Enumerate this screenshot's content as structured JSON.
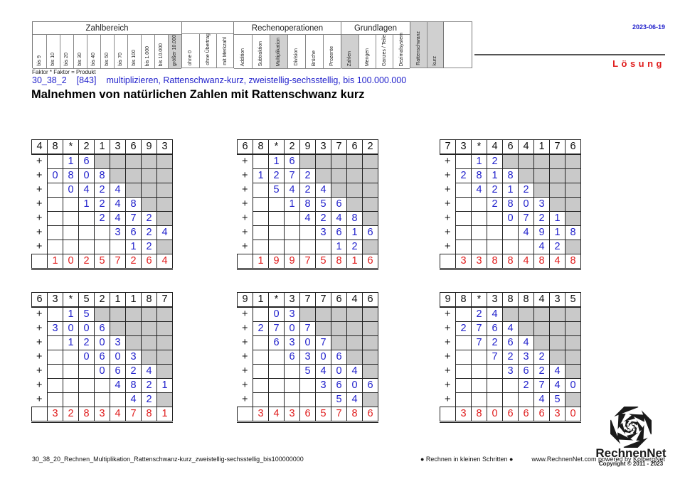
{
  "header": {
    "date": "2023-06-19",
    "solution_label": "Lösung",
    "note": "Faktor * Faktor = Produkt",
    "classification": {
      "sections": [
        {
          "title": "Zahlbereich",
          "columns": [
            {
              "label": "bis 9"
            },
            {
              "label": "bis 10"
            },
            {
              "label": "bis 20"
            },
            {
              "label": "bis 30"
            },
            {
              "label": "bis 40"
            },
            {
              "label": "bis 50"
            },
            {
              "label": "bis 70"
            },
            {
              "label": "bis 100"
            },
            {
              "label": "bis 1.000"
            },
            {
              "label": "bis 10.000"
            },
            {
              "label": "größer 10.000",
              "highlight": true
            }
          ]
        },
        {
          "title": "",
          "columns": [
            {
              "label": "ohne 0"
            },
            {
              "label": "ohne Übertrag"
            },
            {
              "label": "mit Merkzahl"
            }
          ]
        },
        {
          "title": "Rechenoperationen",
          "columns": [
            {
              "label": "Addition"
            },
            {
              "label": "Subtraktion"
            },
            {
              "label": "Multiplikation",
              "highlight": true
            },
            {
              "label": "Division"
            },
            {
              "label": "Brüche"
            },
            {
              "label": "Prozente"
            }
          ]
        },
        {
          "title": "Grundlagen",
          "columns": [
            {
              "label": "Zahlen",
              "highlight": true
            },
            {
              "label": "Mengen"
            },
            {
              "label": "Ganzes / Teile"
            },
            {
              "label": "Dezimalsystem"
            }
          ]
        },
        {
          "title": "",
          "columns": [
            {
              "label": "Rattenschwanz",
              "highlight": true
            },
            {
              "label": "kurz",
              "highlight": true
            }
          ]
        }
      ]
    }
  },
  "worksheet": {
    "code": "30_38_2",
    "reference": "[843]",
    "description": "multiplizieren, Rattenschwanz-kurz, zweistellig-sechsstellig, bis 100.000.000",
    "title": "Malnehmen von natürlichen Zahlen mit Rattenschwanz kurz",
    "plus_sign": "+"
  },
  "grids": [
    {
      "header": [
        "4",
        "8",
        "*",
        "2",
        "1",
        "3",
        "6",
        "9",
        "3"
      ],
      "rows": [
        [
          "",
          "1",
          "6",
          null,
          null,
          null,
          null,
          null
        ],
        [
          "0",
          "8",
          "0",
          "8",
          null,
          null,
          null,
          null
        ],
        [
          "",
          "0",
          "4",
          "2",
          "4",
          null,
          null,
          null
        ],
        [
          "",
          "",
          "1",
          "2",
          "4",
          "8",
          null,
          null
        ],
        [
          "",
          "",
          "",
          "2",
          "4",
          "7",
          "2",
          null
        ],
        [
          "",
          "",
          "",
          "",
          "3",
          "6",
          "2",
          "4"
        ],
        [
          "",
          "",
          "",
          "",
          "",
          "1",
          "2",
          null
        ]
      ],
      "result": [
        "1",
        "0",
        "2",
        "5",
        "7",
        "2",
        "6",
        "4"
      ]
    },
    {
      "header": [
        "6",
        "8",
        "*",
        "2",
        "9",
        "3",
        "7",
        "6",
        "2"
      ],
      "rows": [
        [
          "",
          "1",
          "6",
          null,
          null,
          null,
          null,
          null
        ],
        [
          "1",
          "2",
          "7",
          "2",
          null,
          null,
          null,
          null
        ],
        [
          "",
          "5",
          "4",
          "2",
          "4",
          null,
          null,
          null
        ],
        [
          "",
          "",
          "1",
          "8",
          "5",
          "6",
          null,
          null
        ],
        [
          "",
          "",
          "",
          "4",
          "2",
          "4",
          "8",
          null
        ],
        [
          "",
          "",
          "",
          "",
          "3",
          "6",
          "1",
          "6"
        ],
        [
          "",
          "",
          "",
          "",
          "",
          "1",
          "2",
          null
        ]
      ],
      "result": [
        "1",
        "9",
        "9",
        "7",
        "5",
        "8",
        "1",
        "6"
      ]
    },
    {
      "header": [
        "7",
        "3",
        "*",
        "4",
        "6",
        "4",
        "1",
        "7",
        "6"
      ],
      "rows": [
        [
          "",
          "1",
          "2",
          null,
          null,
          null,
          null,
          null
        ],
        [
          "2",
          "8",
          "1",
          "8",
          null,
          null,
          null,
          null
        ],
        [
          "",
          "4",
          "2",
          "1",
          "2",
          null,
          null,
          null
        ],
        [
          "",
          "",
          "2",
          "8",
          "0",
          "3",
          null,
          null
        ],
        [
          "",
          "",
          "",
          "0",
          "7",
          "2",
          "1",
          null
        ],
        [
          "",
          "",
          "",
          "",
          "4",
          "9",
          "1",
          "8"
        ],
        [
          "",
          "",
          "",
          "",
          "",
          "4",
          "2",
          null
        ]
      ],
      "result": [
        "3",
        "3",
        "8",
        "8",
        "4",
        "8",
        "4",
        "8"
      ]
    },
    {
      "header": [
        "6",
        "3",
        "*",
        "5",
        "2",
        "1",
        "1",
        "8",
        "7"
      ],
      "rows": [
        [
          "",
          "1",
          "5",
          null,
          null,
          null,
          null,
          null
        ],
        [
          "3",
          "0",
          "0",
          "6",
          null,
          null,
          null,
          null
        ],
        [
          "",
          "1",
          "2",
          "0",
          "3",
          null,
          null,
          null
        ],
        [
          "",
          "",
          "0",
          "6",
          "0",
          "3",
          null,
          null
        ],
        [
          "",
          "",
          "",
          "0",
          "6",
          "2",
          "4",
          null
        ],
        [
          "",
          "",
          "",
          "",
          "4",
          "8",
          "2",
          "1"
        ],
        [
          "",
          "",
          "",
          "",
          "",
          "4",
          "2",
          null
        ]
      ],
      "result": [
        "3",
        "2",
        "8",
        "3",
        "4",
        "7",
        "8",
        "1"
      ]
    },
    {
      "header": [
        "9",
        "1",
        "*",
        "3",
        "7",
        "7",
        "6",
        "4",
        "6"
      ],
      "rows": [
        [
          "",
          "0",
          "3",
          null,
          null,
          null,
          null,
          null
        ],
        [
          "2",
          "7",
          "0",
          "7",
          null,
          null,
          null,
          null
        ],
        [
          "",
          "6",
          "3",
          "0",
          "7",
          null,
          null,
          null
        ],
        [
          "",
          "",
          "6",
          "3",
          "0",
          "6",
          null,
          null
        ],
        [
          "",
          "",
          "",
          "5",
          "4",
          "0",
          "4",
          null
        ],
        [
          "",
          "",
          "",
          "",
          "3",
          "6",
          "0",
          "6"
        ],
        [
          "",
          "",
          "",
          "",
          "",
          "5",
          "4",
          null
        ]
      ],
      "result": [
        "3",
        "4",
        "3",
        "6",
        "5",
        "7",
        "8",
        "6"
      ]
    },
    {
      "header": [
        "9",
        "8",
        "*",
        "3",
        "8",
        "8",
        "4",
        "3",
        "5"
      ],
      "rows": [
        [
          "",
          "2",
          "4",
          null,
          null,
          null,
          null,
          null
        ],
        [
          "2",
          "7",
          "6",
          "4",
          null,
          null,
          null,
          null
        ],
        [
          "",
          "7",
          "2",
          "6",
          "4",
          null,
          null,
          null
        ],
        [
          "",
          "",
          "7",
          "2",
          "3",
          "2",
          null,
          null
        ],
        [
          "",
          "",
          "",
          "3",
          "6",
          "2",
          "4",
          null
        ],
        [
          "",
          "",
          "",
          "",
          "2",
          "7",
          "4",
          "0"
        ],
        [
          "",
          "",
          "",
          "",
          "",
          "4",
          "5",
          null
        ]
      ],
      "result": [
        "3",
        "8",
        "0",
        "6",
        "6",
        "6",
        "3",
        "0"
      ]
    }
  ],
  "footer": {
    "filename": "30_38_20_Rechnen_Multiplikation_Rattenschwanz-kurz_zweistellig-sechsstellig_bis100000000",
    "slogan": "● Rechnen in kleinen Schritten ●",
    "website": "www.RechnenNet.com powered by KolbergNet",
    "logo_text": "RechnenNet",
    "copyright": "Copyright © 2011 - 2023"
  },
  "colors": {
    "accent_blue": "#2222cc",
    "result_red": "#e01d1d",
    "cell_gray": "#c9c9c9"
  }
}
